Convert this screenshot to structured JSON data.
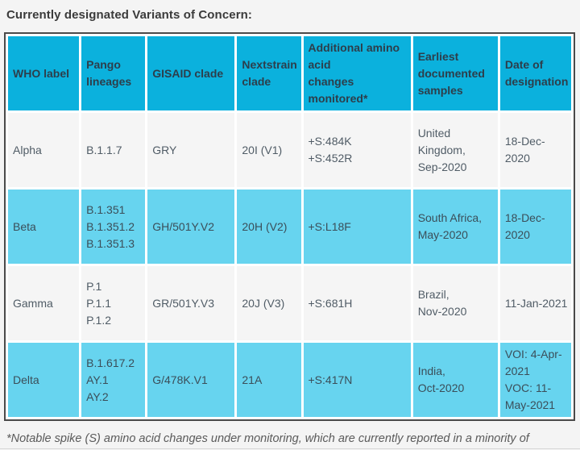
{
  "page": {
    "title": "Currently designated Variants of Concern:",
    "footnote": "*Notable spike (S) amino acid changes under monitoring, which are currently reported in a minority of sequenced samples."
  },
  "colors": {
    "header_bg": "#0bb1dd",
    "row_highlight_bg": "#67d4ef",
    "row_default_bg": "#f5f5f5",
    "table_border": "#4a4a4a",
    "page_bg": "#f4f4f4"
  },
  "table": {
    "columns": [
      {
        "label": "WHO label"
      },
      {
        "label": "Pango lineages"
      },
      {
        "label": "GISAID clade"
      },
      {
        "label": "Nextstrain clade"
      },
      {
        "label": "Additional amino acid\nchanges monitored*"
      },
      {
        "label": "Earliest documented samples"
      },
      {
        "label": "Date of designation"
      }
    ],
    "rows": [
      {
        "who": "Alpha",
        "pango": "B.1.1.7",
        "gisaid": "GRY",
        "nextstrain": "20I (V1)",
        "amino": "+S:484K\n+S:452R",
        "earliest": "United Kingdom,\nSep-2020",
        "date": "18-Dec-2020"
      },
      {
        "who": "Beta",
        "pango": "B.1.351\nB.1.351.2\nB.1.351.3",
        "gisaid": "GH/501Y.V2",
        "nextstrain": "20H (V2)",
        "amino": "+S:L18F",
        "earliest": "South Africa,\nMay-2020",
        "date": "18-Dec-2020"
      },
      {
        "who": "Gamma",
        "pango": "P.1\nP.1.1\nP.1.2",
        "gisaid": "GR/501Y.V3",
        "nextstrain": "20J (V3)",
        "amino": "+S:681H",
        "earliest": "Brazil,\nNov-2020",
        "date": "11-Jan-2021"
      },
      {
        "who": "Delta",
        "pango": "B.1.617.2\nAY.1\nAY.2",
        "gisaid": "G/478K.V1",
        "nextstrain": "21A",
        "amino": "+S:417N",
        "earliest": "India,\nOct-2020",
        "date": "VOI: 4-Apr-2021\nVOC: 11-May-2021"
      }
    ]
  }
}
